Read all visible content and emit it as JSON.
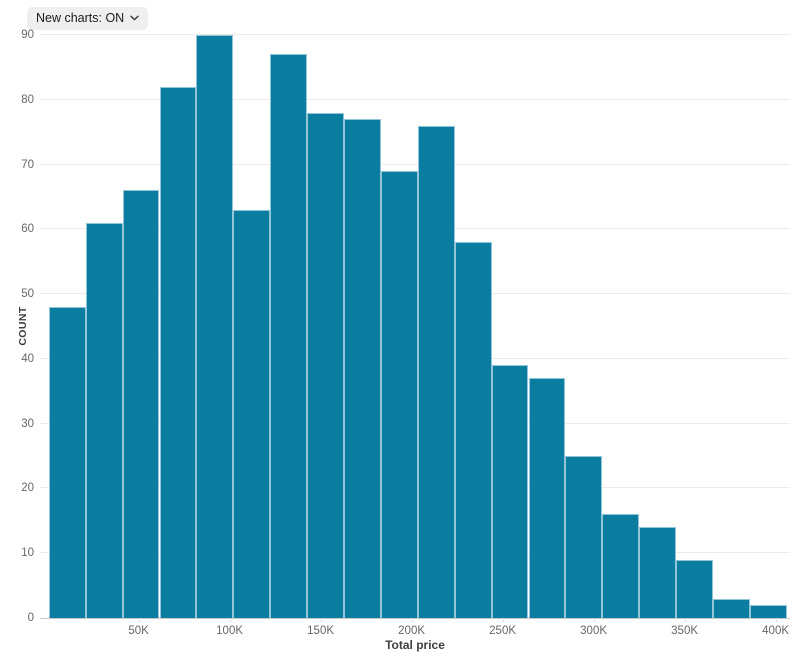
{
  "controls": {
    "new_charts": {
      "label": "New charts: ON"
    }
  },
  "chart_data": {
    "type": "bar",
    "variant": "histogram",
    "title": "",
    "xlabel": "Total price",
    "ylabel": "COUNT",
    "ylim": [
      0,
      90
    ],
    "y_ticks": [
      0,
      10,
      20,
      30,
      40,
      50,
      60,
      70,
      80,
      90
    ],
    "x_tick_labels": [
      "50K",
      "100K",
      "150K",
      "200K",
      "250K",
      "300K",
      "350K",
      "400K"
    ],
    "x_tick_values": [
      50000,
      100000,
      150000,
      200000,
      250000,
      300000,
      350000,
      400000
    ],
    "bin_start": 0,
    "bin_width": 20000,
    "values": [
      48,
      61,
      66,
      82,
      90,
      63,
      87,
      78,
      77,
      69,
      76,
      58,
      39,
      37,
      25,
      16,
      14,
      9,
      3,
      2
    ],
    "grid": true,
    "legend": false,
    "colors": {
      "bar_fill": "#0b7da1",
      "bar_stroke": "#93c5d8",
      "gridline": "#ececec",
      "axis_line": "#c9c9c9",
      "tick_text": "#666666",
      "axis_title_text": "#3f3f3f",
      "dropdown_bg": "#efefef"
    }
  }
}
